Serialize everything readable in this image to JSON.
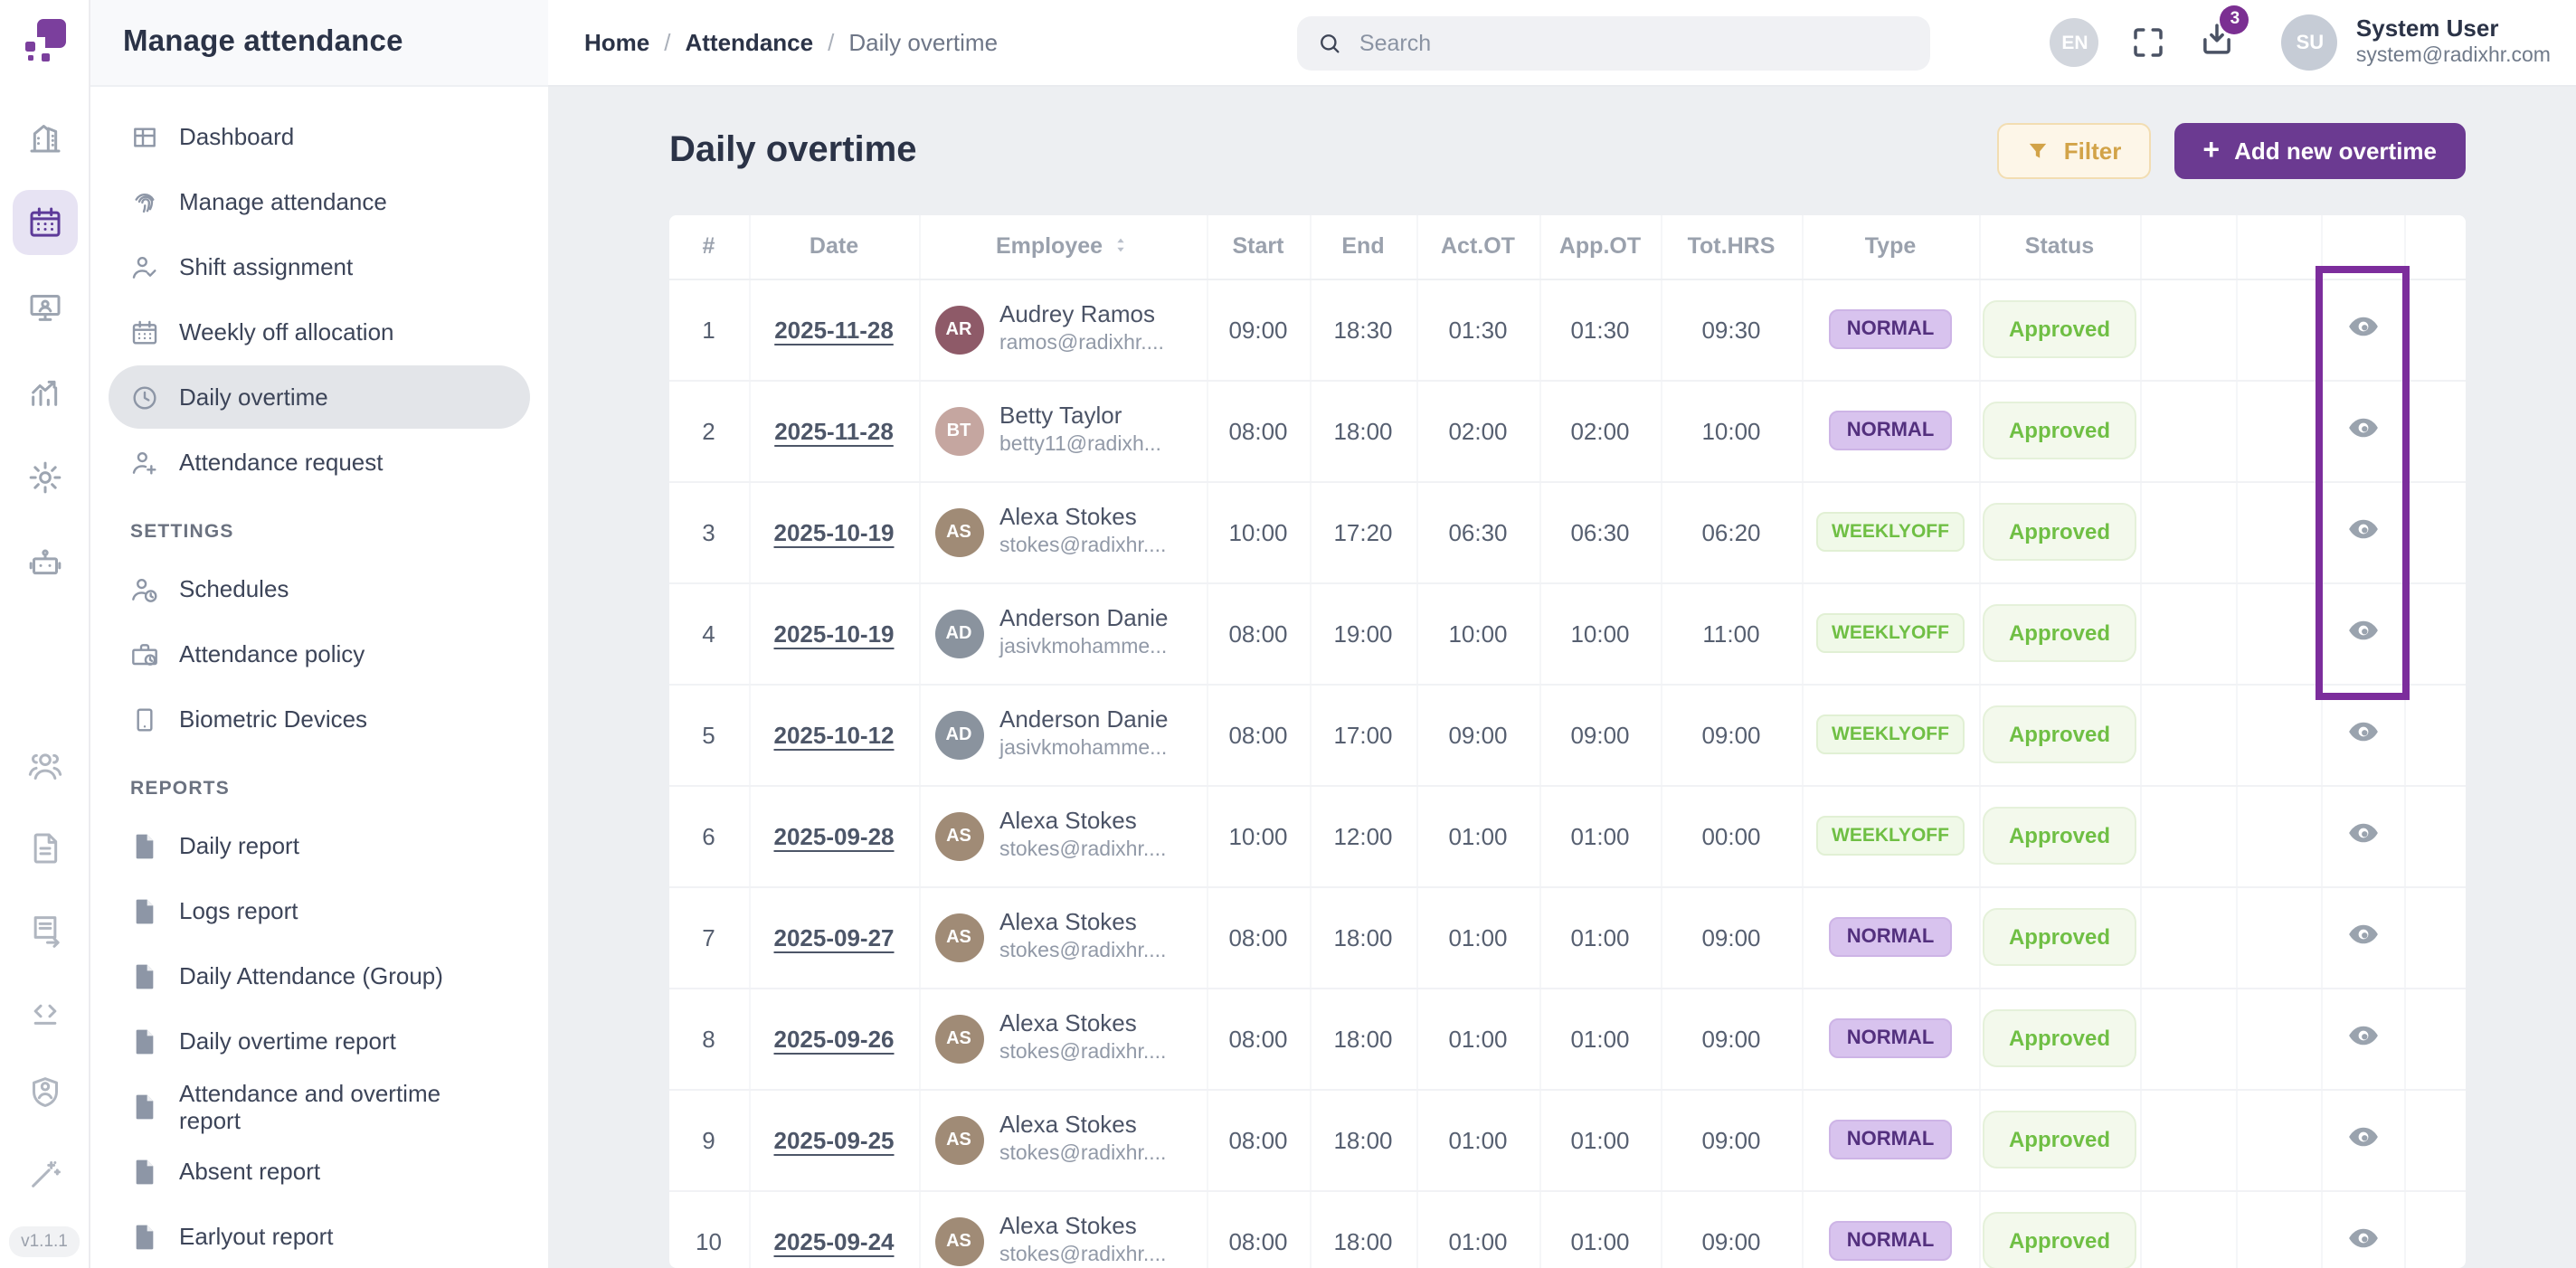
{
  "sidebar": {
    "title": "Manage attendance",
    "version": "v1.1.1",
    "sections": [
      {
        "label": "",
        "items": [
          {
            "label": "Dashboard",
            "icon": "dashboard-grid",
            "active": false
          },
          {
            "label": "Manage attendance",
            "icon": "fingerprint",
            "active": false
          },
          {
            "label": "Shift assignment",
            "icon": "user-check",
            "active": false
          },
          {
            "label": "Weekly off allocation",
            "icon": "calendar",
            "active": false
          },
          {
            "label": "Daily overtime",
            "icon": "clock",
            "active": true
          },
          {
            "label": "Attendance request",
            "icon": "user-plus",
            "active": false
          }
        ]
      },
      {
        "label": "SETTINGS",
        "items": [
          {
            "label": "Schedules",
            "icon": "user-clock",
            "active": false
          },
          {
            "label": "Attendance policy",
            "icon": "briefcase-clock",
            "active": false
          },
          {
            "label": "Biometric Devices",
            "icon": "mobile-device",
            "active": false
          }
        ]
      },
      {
        "label": "REPORTS",
        "items": [
          {
            "label": "Daily report",
            "icon": "pdf-file",
            "active": false
          },
          {
            "label": "Logs report",
            "icon": "pdf-file",
            "active": false
          },
          {
            "label": "Daily Attendance (Group)",
            "icon": "pdf-file",
            "active": false
          },
          {
            "label": "Daily overtime report",
            "icon": "pdf-file",
            "active": false
          },
          {
            "label": "Attendance and overtime report",
            "icon": "pdf-file",
            "active": false
          },
          {
            "label": "Absent report",
            "icon": "pdf-file",
            "active": false
          },
          {
            "label": "Earlyout report",
            "icon": "pdf-file",
            "active": false
          }
        ]
      }
    ]
  },
  "rail": {
    "top_icons": [
      {
        "icon": "building",
        "active": false
      },
      {
        "icon": "calendar",
        "active": true
      },
      {
        "icon": "monitor-user",
        "active": false
      },
      {
        "icon": "chart-trend",
        "active": false
      },
      {
        "icon": "gear",
        "active": false
      },
      {
        "icon": "robot",
        "active": false
      }
    ],
    "bottom_icons": [
      {
        "icon": "users-group"
      },
      {
        "icon": "document"
      },
      {
        "icon": "receipt-export"
      },
      {
        "icon": "code-bracket"
      },
      {
        "icon": "shield-user"
      },
      {
        "icon": "magic-wand"
      }
    ]
  },
  "topbar": {
    "breadcrumb": [
      {
        "label": "Home",
        "current": false
      },
      {
        "label": "Attendance",
        "current": false
      },
      {
        "label": "Daily overtime",
        "current": true
      }
    ],
    "search_placeholder": "Search",
    "language_badge": "EN",
    "notification_count": "3",
    "user": {
      "initials": "SU",
      "name": "System User",
      "email": "system@radixhr.com"
    }
  },
  "page": {
    "title": "Daily overtime",
    "filter_button": "Filter",
    "add_button": "Add new overtime",
    "add_plus": "+"
  },
  "table": {
    "columns": [
      "#",
      "Date",
      "Employee",
      "Start",
      "End",
      "Act.OT",
      "App.OT",
      "Tot.HRS",
      "Type",
      "Status"
    ],
    "rows": [
      {
        "num": "1",
        "date": "2025-11-28",
        "name": "Audrey Ramos",
        "email": "ramos@radixhr....",
        "initials": "AR",
        "avatar_color": "#8e5a68",
        "start": "09:00",
        "end": "18:30",
        "act_ot": "01:30",
        "app_ot": "01:30",
        "tot_hrs": "09:30",
        "type": "NORMAL",
        "status": "Approved"
      },
      {
        "num": "2",
        "date": "2025-11-28",
        "name": "Betty Taylor",
        "email": "betty11@radixh...",
        "initials": "BT",
        "avatar_color": "#c5a6a0",
        "start": "08:00",
        "end": "18:00",
        "act_ot": "02:00",
        "app_ot": "02:00",
        "tot_hrs": "10:00",
        "type": "NORMAL",
        "status": "Approved"
      },
      {
        "num": "3",
        "date": "2025-10-19",
        "name": "Alexa Stokes",
        "email": "stokes@radixhr....",
        "initials": "AS",
        "avatar_color": "#a08b76",
        "start": "10:00",
        "end": "17:20",
        "act_ot": "06:30",
        "app_ot": "06:30",
        "tot_hrs": "06:20",
        "type": "WEEKLYOFF",
        "status": "Approved"
      },
      {
        "num": "4",
        "date": "2025-10-19",
        "name": "Anderson Danie",
        "email": "jasivkmohamme...",
        "initials": "AD",
        "avatar_color": "#8a939e",
        "start": "08:00",
        "end": "19:00",
        "act_ot": "10:00",
        "app_ot": "10:00",
        "tot_hrs": "11:00",
        "type": "WEEKLYOFF",
        "status": "Approved"
      },
      {
        "num": "5",
        "date": "2025-10-12",
        "name": "Anderson Danie",
        "email": "jasivkmohamme...",
        "initials": "AD",
        "avatar_color": "#8a939e",
        "start": "08:00",
        "end": "17:00",
        "act_ot": "09:00",
        "app_ot": "09:00",
        "tot_hrs": "09:00",
        "type": "WEEKLYOFF",
        "status": "Approved"
      },
      {
        "num": "6",
        "date": "2025-09-28",
        "name": "Alexa Stokes",
        "email": "stokes@radixhr....",
        "initials": "AS",
        "avatar_color": "#a08b76",
        "start": "10:00",
        "end": "12:00",
        "act_ot": "01:00",
        "app_ot": "01:00",
        "tot_hrs": "00:00",
        "type": "WEEKLYOFF",
        "status": "Approved"
      },
      {
        "num": "7",
        "date": "2025-09-27",
        "name": "Alexa Stokes",
        "email": "stokes@radixhr....",
        "initials": "AS",
        "avatar_color": "#a08b76",
        "start": "08:00",
        "end": "18:00",
        "act_ot": "01:00",
        "app_ot": "01:00",
        "tot_hrs": "09:00",
        "type": "NORMAL",
        "status": "Approved"
      },
      {
        "num": "8",
        "date": "2025-09-26",
        "name": "Alexa Stokes",
        "email": "stokes@radixhr....",
        "initials": "AS",
        "avatar_color": "#a08b76",
        "start": "08:00",
        "end": "18:00",
        "act_ot": "01:00",
        "app_ot": "01:00",
        "tot_hrs": "09:00",
        "type": "NORMAL",
        "status": "Approved"
      },
      {
        "num": "9",
        "date": "2025-09-25",
        "name": "Alexa Stokes",
        "email": "stokes@radixhr....",
        "initials": "AS",
        "avatar_color": "#a08b76",
        "start": "08:00",
        "end": "18:00",
        "act_ot": "01:00",
        "app_ot": "01:00",
        "tot_hrs": "09:00",
        "type": "NORMAL",
        "status": "Approved"
      },
      {
        "num": "10",
        "date": "2025-09-24",
        "name": "Alexa Stokes",
        "email": "stokes@radixhr....",
        "initials": "AS",
        "avatar_color": "#a08b76",
        "start": "08:00",
        "end": "18:00",
        "act_ot": "01:00",
        "app_ot": "01:00",
        "tot_hrs": "09:00",
        "type": "NORMAL",
        "status": "Approved"
      }
    ]
  },
  "colors": {
    "accent_purple": "#6b3a91",
    "highlight_box": "#7c2d9c",
    "type_normal_bg": "#d8c3ee",
    "type_normal_text": "#53307e",
    "type_weeklyoff_bg": "#f0f9e8",
    "type_weeklyoff_text": "#6fbf44",
    "status_approved_bg": "#f3f9ec",
    "status_approved_text": "#6fbf44",
    "filter_text": "#d2a348"
  }
}
